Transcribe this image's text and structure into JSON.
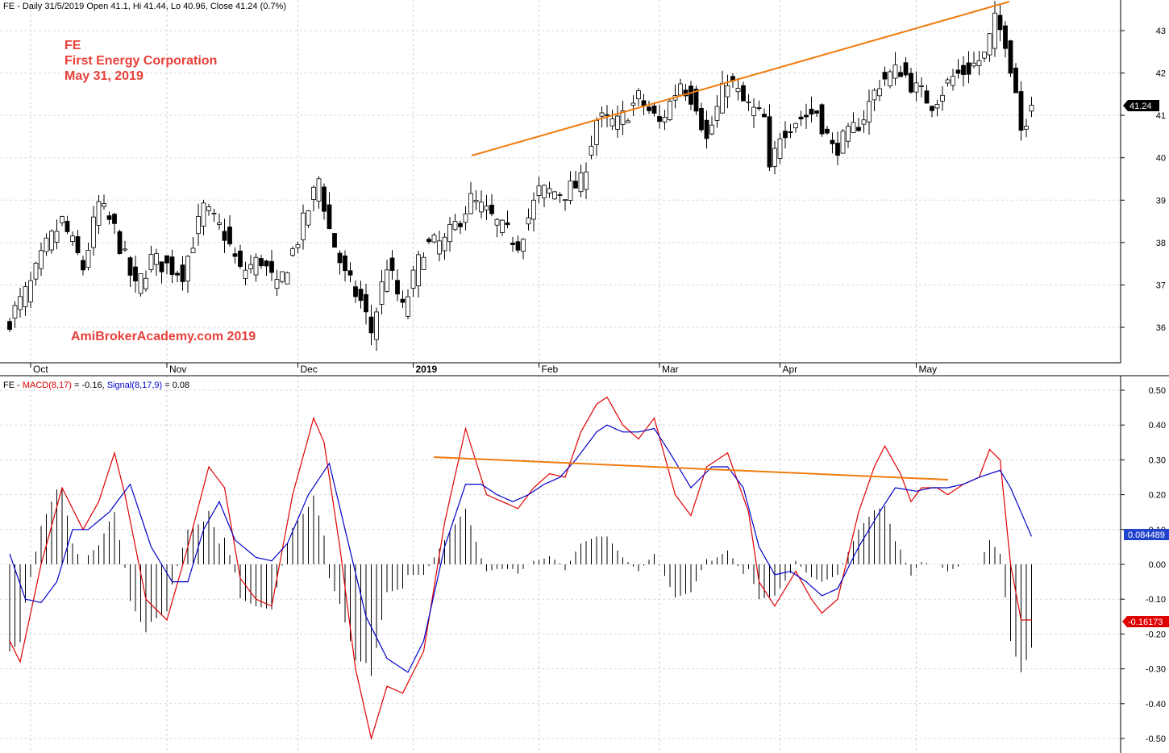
{
  "header": {
    "price": "FE - Daily 31/5/2019 Open 41.1, Hi 41.44, Lo 40.96, Close 41.24 (0.7%)",
    "macd_prefix": "FE - ",
    "macd_label": "MACD(8,17)",
    "macd_value": " = -0.16, ",
    "signal_label": "Signal(8,17,9)",
    "signal_value": " = 0.08"
  },
  "annotations": {
    "ticker": "FE",
    "company": "First Energy Corporation",
    "date": "May 31, 2019",
    "watermark": "AmiBrokerAcademy.com  2019"
  },
  "price_badge": "41.24",
  "macd_badge": "-0.16173",
  "signal_badge": "0.084489",
  "x_labels": [
    "Oct",
    "Nov",
    "Dec",
    "2019",
    "Feb",
    "Mar",
    "Apr",
    "May"
  ],
  "colors": {
    "macd": "#e00000",
    "signal": "#0000cc",
    "trendline": "#f07c10",
    "annotation": "#e8403a",
    "up_candle": "#ffffff",
    "down_candle": "#000000"
  },
  "chart_data": [
    {
      "type": "candlestick",
      "title": "FE - Daily 31/5/2019 Open 41.1, Hi 41.44, Lo 40.96, Close 41.24 (0.7%)",
      "ylim": [
        35.2,
        43.5
      ],
      "y_ticks": [
        "36",
        "37",
        "38",
        "39",
        "40",
        "41",
        "42",
        "43"
      ],
      "x_months": [
        "Oct",
        "Nov",
        "Dec",
        "2019",
        "Feb",
        "Mar",
        "Apr",
        "May"
      ],
      "anchors": [
        [
          0,
          36.2
        ],
        [
          4,
          37.0
        ],
        [
          7,
          37.9
        ],
        [
          10,
          38.5
        ],
        [
          14,
          37.4
        ],
        [
          17,
          38.9
        ],
        [
          20,
          38.3
        ],
        [
          24,
          36.9
        ],
        [
          27,
          37.6
        ],
        [
          33,
          37.3
        ],
        [
          37,
          38.8
        ],
        [
          41,
          38.2
        ],
        [
          44,
          37.3
        ],
        [
          48,
          37.6
        ],
        [
          51,
          36.9
        ],
        [
          55,
          38.1
        ],
        [
          59,
          39.5
        ],
        [
          61,
          38.3
        ],
        [
          64,
          37.2
        ],
        [
          67,
          36.6
        ],
        [
          69,
          35.9
        ],
        [
          72,
          37.5
        ],
        [
          75,
          36.4
        ],
        [
          79,
          37.9
        ],
        [
          83,
          38.0
        ],
        [
          88,
          39.0
        ],
        [
          91,
          38.7
        ],
        [
          94,
          38.3
        ],
        [
          97,
          38.0
        ],
        [
          101,
          39.2
        ],
        [
          106,
          39.2
        ],
        [
          109,
          39.4
        ],
        [
          112,
          40.9
        ],
        [
          116,
          40.8
        ],
        [
          120,
          41.4
        ],
        [
          124,
          40.8
        ],
        [
          128,
          41.8
        ],
        [
          131,
          41.3
        ],
        [
          133,
          40.4
        ],
        [
          137,
          41.9
        ],
        [
          140,
          41.3
        ],
        [
          144,
          40.9
        ],
        [
          145,
          39.6
        ],
        [
          147,
          40.6
        ],
        [
          150,
          40.9
        ],
        [
          154,
          41.1
        ],
        [
          157,
          40.2
        ],
        [
          160,
          40.5
        ],
        [
          163,
          41.0
        ],
        [
          166,
          41.8
        ],
        [
          170,
          42.1
        ],
        [
          173,
          41.6
        ],
        [
          176,
          41.3
        ],
        [
          180,
          41.9
        ],
        [
          183,
          42.1
        ],
        [
          186,
          42.4
        ],
        [
          188,
          43.2
        ],
        [
          190,
          42.8
        ],
        [
          192,
          41.6
        ],
        [
          193,
          40.7
        ],
        [
          195,
          41.24
        ]
      ],
      "last": {
        "open": 41.1,
        "high": 41.44,
        "low": 40.96,
        "close": 41.24
      }
    },
    {
      "type": "line",
      "title": "MACD(8,17) = -0.16, Signal(8,17,9) = 0.08",
      "ylim": [
        -0.52,
        0.52
      ],
      "y_ticks": [
        "0.50",
        "0.40",
        "0.30",
        "0.20",
        "0.10",
        "0.00",
        "-0.10",
        "-0.20",
        "-0.30",
        "-0.40",
        "-0.50"
      ],
      "series": [
        {
          "name": "MACD(8,17)",
          "color": "#e00000",
          "anchors": [
            [
              0,
              -0.22
            ],
            [
              2,
              -0.28
            ],
            [
              6,
              0.0
            ],
            [
              10,
              0.22
            ],
            [
              14,
              0.1
            ],
            [
              17,
              0.18
            ],
            [
              20,
              0.32
            ],
            [
              22,
              0.2
            ],
            [
              26,
              -0.1
            ],
            [
              30,
              -0.16
            ],
            [
              34,
              0.05
            ],
            [
              38,
              0.28
            ],
            [
              41,
              0.22
            ],
            [
              44,
              -0.04
            ],
            [
              47,
              -0.1
            ],
            [
              50,
              -0.12
            ],
            [
              54,
              0.2
            ],
            [
              58,
              0.42
            ],
            [
              60,
              0.35
            ],
            [
              63,
              0.05
            ],
            [
              66,
              -0.3
            ],
            [
              69,
              -0.5
            ],
            [
              72,
              -0.35
            ],
            [
              75,
              -0.37
            ],
            [
              79,
              -0.25
            ],
            [
              83,
              0.12
            ],
            [
              87,
              0.39
            ],
            [
              91,
              0.2
            ],
            [
              94,
              0.18
            ],
            [
              97,
              0.16
            ],
            [
              100,
              0.22
            ],
            [
              103,
              0.26
            ],
            [
              106,
              0.25
            ],
            [
              109,
              0.38
            ],
            [
              112,
              0.46
            ],
            [
              114,
              0.48
            ],
            [
              117,
              0.4
            ],
            [
              120,
              0.36
            ],
            [
              123,
              0.42
            ],
            [
              127,
              0.2
            ],
            [
              130,
              0.14
            ],
            [
              133,
              0.28
            ],
            [
              137,
              0.32
            ],
            [
              141,
              0.15
            ],
            [
              143,
              -0.05
            ],
            [
              146,
              -0.12
            ],
            [
              150,
              -0.02
            ],
            [
              153,
              -0.1
            ],
            [
              155,
              -0.14
            ],
            [
              158,
              -0.1
            ],
            [
              162,
              0.15
            ],
            [
              165,
              0.28
            ],
            [
              167,
              0.34
            ],
            [
              170,
              0.26
            ],
            [
              172,
              0.18
            ],
            [
              174,
              0.22
            ],
            [
              177,
              0.22
            ],
            [
              179,
              0.2
            ],
            [
              182,
              0.23
            ],
            [
              185,
              0.25
            ],
            [
              187,
              0.33
            ],
            [
              189,
              0.3
            ],
            [
              191,
              0.0
            ],
            [
              193,
              -0.16
            ]
          ]
        },
        {
          "name": "Signal(8,17,9)",
          "color": "#0000cc",
          "anchors": [
            [
              0,
              0.03
            ],
            [
              3,
              -0.1
            ],
            [
              6,
              -0.11
            ],
            [
              9,
              -0.05
            ],
            [
              12,
              0.1
            ],
            [
              15,
              0.1
            ],
            [
              19,
              0.15
            ],
            [
              23,
              0.23
            ],
            [
              27,
              0.05
            ],
            [
              31,
              -0.05
            ],
            [
              34,
              -0.05
            ],
            [
              37,
              0.1
            ],
            [
              40,
              0.18
            ],
            [
              43,
              0.07
            ],
            [
              47,
              0.02
            ],
            [
              50,
              0.01
            ],
            [
              53,
              0.06
            ],
            [
              57,
              0.2
            ],
            [
              61,
              0.29
            ],
            [
              64,
              0.1
            ],
            [
              68,
              -0.15
            ],
            [
              72,
              -0.27
            ],
            [
              76,
              -0.31
            ],
            [
              79,
              -0.22
            ],
            [
              83,
              0.05
            ],
            [
              87,
              0.23
            ],
            [
              90,
              0.23
            ],
            [
              93,
              0.2
            ],
            [
              96,
              0.18
            ],
            [
              99,
              0.2
            ],
            [
              102,
              0.23
            ],
            [
              105,
              0.25
            ],
            [
              108,
              0.3
            ],
            [
              112,
              0.38
            ],
            [
              114,
              0.4
            ],
            [
              117,
              0.38
            ],
            [
              120,
              0.38
            ],
            [
              123,
              0.39
            ],
            [
              126,
              0.32
            ],
            [
              130,
              0.22
            ],
            [
              134,
              0.28
            ],
            [
              137,
              0.28
            ],
            [
              140,
              0.22
            ],
            [
              143,
              0.05
            ],
            [
              146,
              -0.03
            ],
            [
              149,
              -0.02
            ],
            [
              152,
              -0.05
            ],
            [
              155,
              -0.09
            ],
            [
              158,
              -0.07
            ],
            [
              162,
              0.05
            ],
            [
              166,
              0.15
            ],
            [
              169,
              0.22
            ],
            [
              173,
              0.21
            ],
            [
              176,
              0.22
            ],
            [
              179,
              0.22
            ],
            [
              182,
              0.23
            ],
            [
              185,
              0.25
            ],
            [
              189,
              0.27
            ],
            [
              191,
              0.22
            ],
            [
              195,
              0.08
            ]
          ]
        }
      ]
    }
  ]
}
